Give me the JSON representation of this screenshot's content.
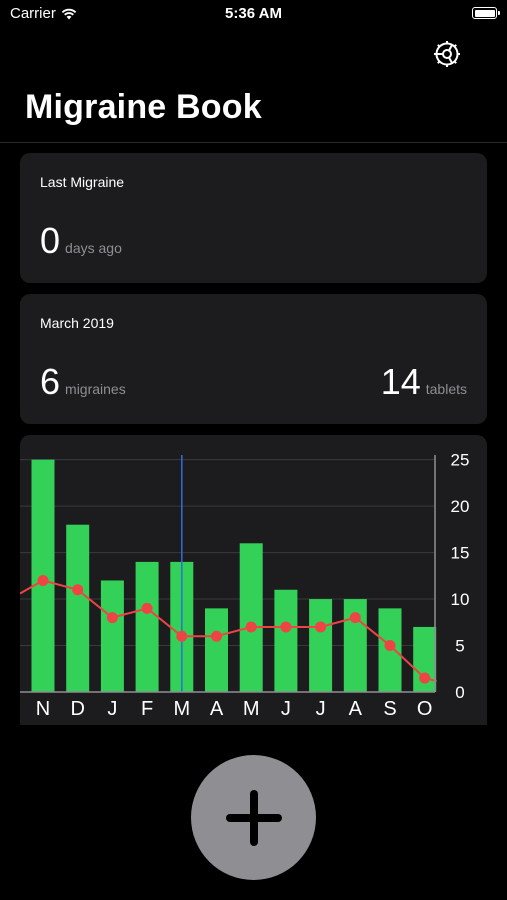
{
  "status_bar": {
    "carrier": "Carrier",
    "time": "5:36 AM"
  },
  "header": {
    "title": "Migraine Book",
    "settings_icon": "gear-icon"
  },
  "last_migraine": {
    "title": "Last Migraine",
    "value": "0",
    "unit": "days ago"
  },
  "month_summary": {
    "title": "March 2019",
    "migraines_value": "6",
    "migraines_unit": "migraines",
    "tablets_value": "14",
    "tablets_unit": "tablets"
  },
  "chart_data": {
    "type": "bar",
    "categories": [
      "N",
      "D",
      "J",
      "F",
      "M",
      "A",
      "M",
      "J",
      "J",
      "A",
      "S",
      "O"
    ],
    "series": [
      {
        "type": "bar",
        "values": [
          25,
          18,
          12,
          14,
          14,
          9,
          16,
          11,
          10,
          10,
          9,
          7
        ]
      },
      {
        "type": "line",
        "values": [
          12,
          11,
          8,
          9,
          6,
          6,
          7,
          7,
          7,
          8,
          5,
          1.5
        ]
      }
    ],
    "yticks": [
      0,
      5,
      10,
      15,
      20,
      25
    ],
    "ylim": [
      0,
      25.5
    ],
    "selected_index": 4,
    "grid": true,
    "y_axis_side": "right",
    "colors": {
      "bar": "#33d158",
      "line": "#ef4444",
      "selection": "#2f6fd6",
      "grid": "#3a3a3c"
    }
  },
  "add_button": {
    "icon": "plus-icon"
  },
  "colors": {
    "background": "#000000",
    "card": "#1c1c1e",
    "secondary_text": "#8e8e93",
    "button": "#8e8e93"
  }
}
